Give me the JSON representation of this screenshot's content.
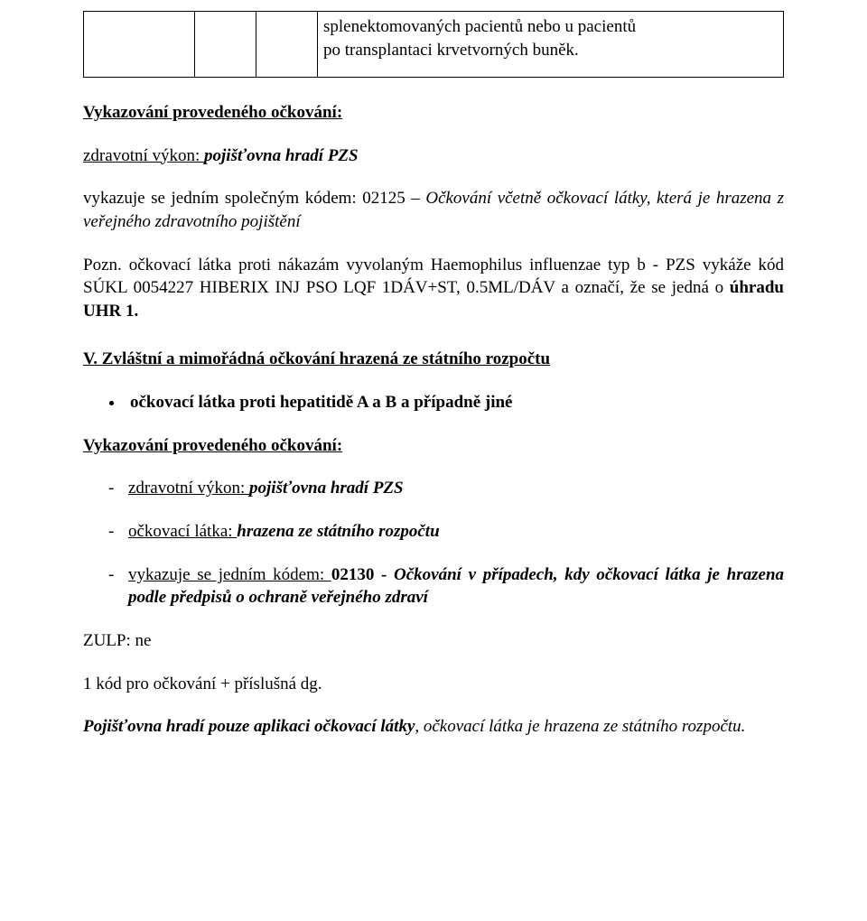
{
  "table": {
    "cell_text_line1": "splenektomovaných pacientů nebo u pacientů",
    "cell_text_line2": "po transplantaci krvetvorných buněk."
  },
  "heading1": "Vykazování provedeného očkování:",
  "line_zdrav_pref": "zdravotní výkon: ",
  "line_zdrav_val": "pojišťovna hradí PZS",
  "para1_pref": "vykazuje se jedním společným kódem: 02125 ",
  "para1_dash": "– ",
  "para1_ital": "Očkování včetně očkovací látky, která je hrazena z veřejného zdravotního pojištění",
  "pozn": "Pozn. očkovací látka proti nákazám vyvolaným Haemophilus influenzae typ b - PZS vykáže kód SÚKL 0054227 HIBERIX INJ PSO LQF 1DÁV+ST, 0.5ML/DÁV a označí, že se jedná o ",
  "pozn_bold": "úhradu UHR 1.",
  "section_v": "V. Zvláštní a mimořádná očkování hrazená ze státního rozpočtu",
  "bullet1": "očkovací látka proti hepatitidě A a B a případně jiné",
  "heading2": "Vykazování provedeného očkování:",
  "dash1_pref": "zdravotní výkon: ",
  "dash1_ital": "pojišťovna hradí PZS",
  "dash2_pref": "očkovací látka: ",
  "dash2_ital": "hrazena ze státního rozpočtu",
  "dash3_pref": "vykazuje se jedním kódem: ",
  "dash3_bold": "02130 - ",
  "dash3_ital": "Očkování v případech, kdy očkovací látka je hrazena podle předpisů o ochraně veřejného zdraví",
  "zulp": "ZULP: ne",
  "kod_line": "1 kód pro očkování + příslušná dg.",
  "final_bold": "Pojišťovna hradí pouze aplikaci očkovací látky",
  "final_rest": ", očkovací látka je hrazena ze státního rozpočtu."
}
